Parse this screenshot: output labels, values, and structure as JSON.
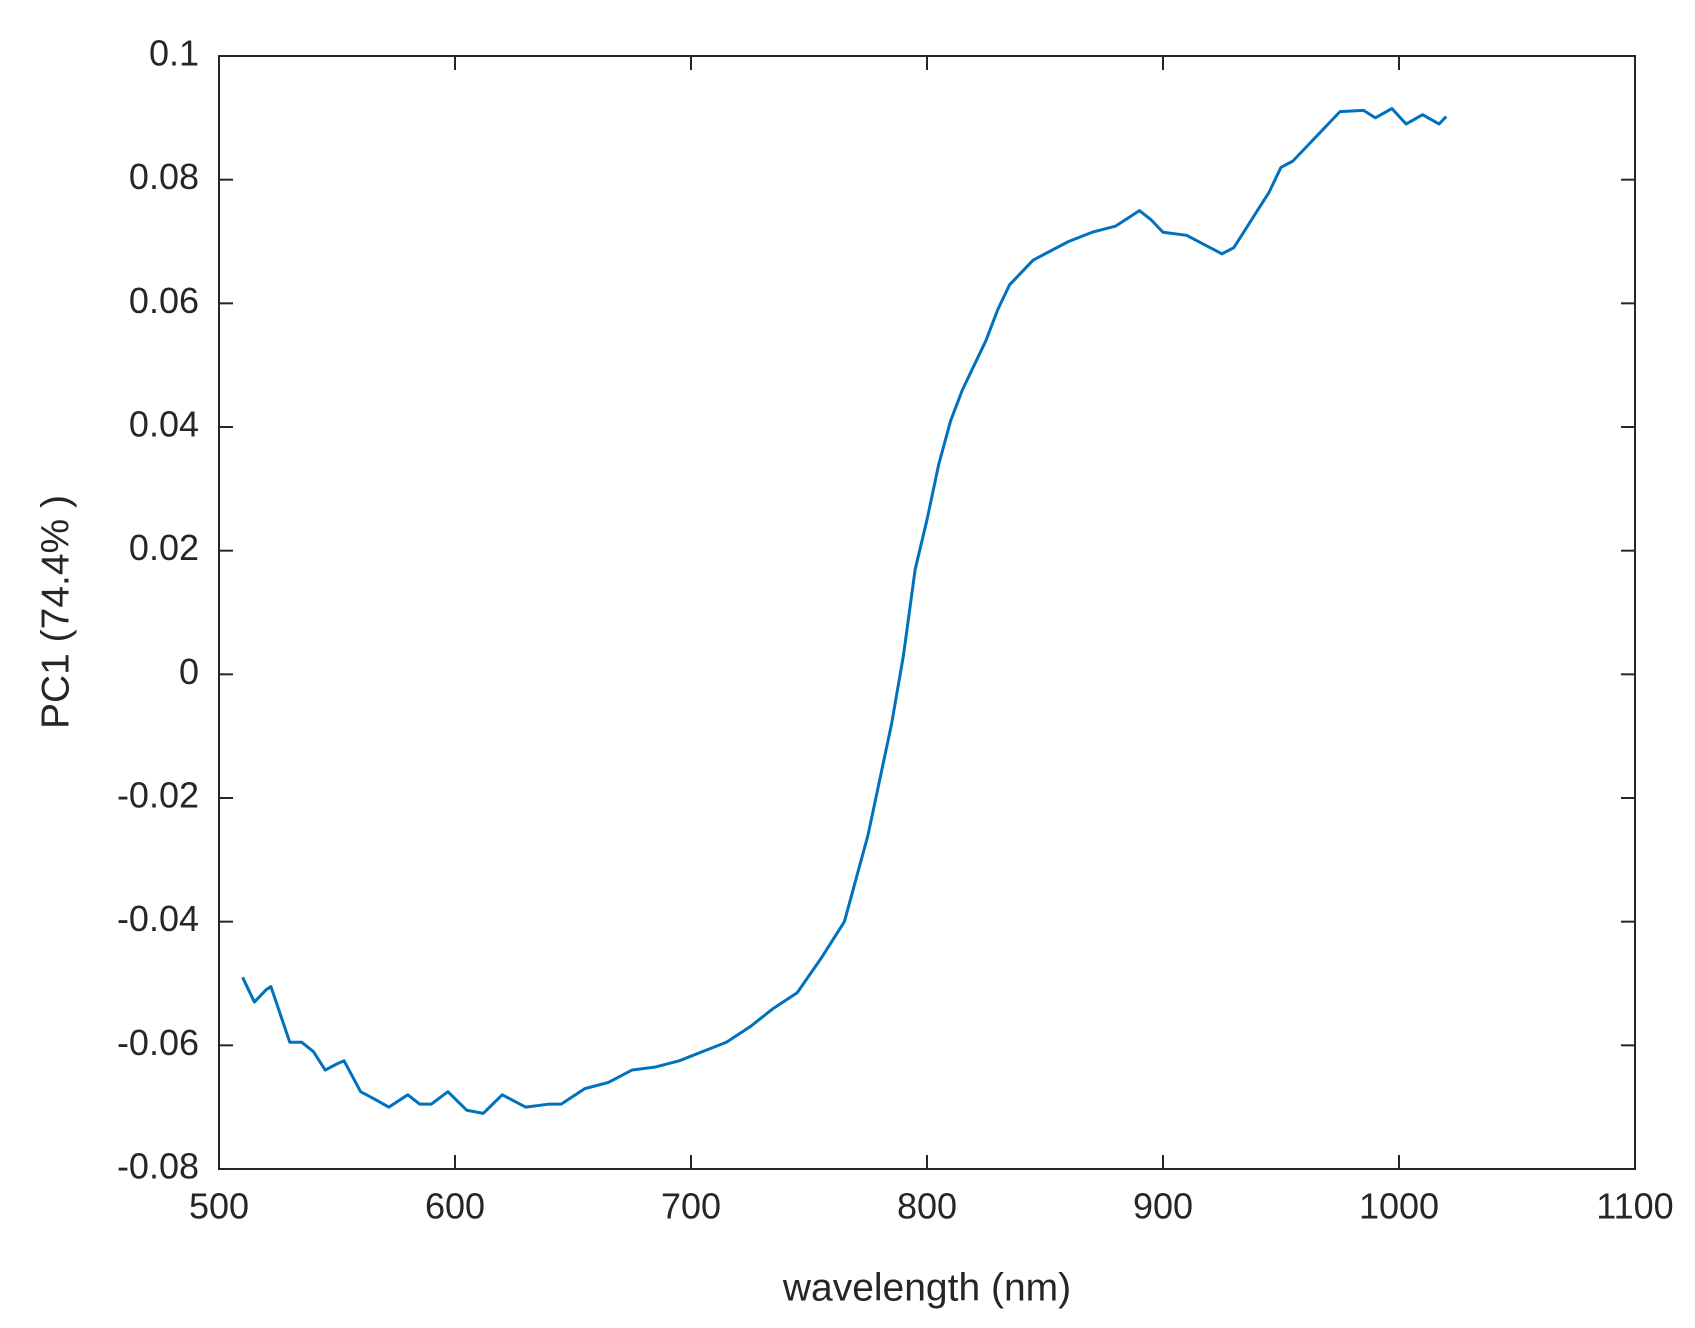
{
  "chart_data": {
    "type": "line",
    "xlabel": "wavelength (nm)",
    "ylabel": "PC1 (74.4% )",
    "x": [
      510,
      515,
      520,
      522,
      530,
      535,
      540,
      545,
      550,
      553,
      560,
      565,
      572,
      580,
      585,
      590,
      597,
      605,
      612,
      620,
      630,
      640,
      645,
      655,
      665,
      675,
      685,
      695,
      705,
      715,
      725,
      735,
      745,
      755,
      765,
      770,
      775,
      780,
      785,
      790,
      795,
      800,
      805,
      810,
      815,
      820,
      825,
      830,
      835,
      840,
      845,
      850,
      860,
      870,
      880,
      890,
      895,
      900,
      910,
      920,
      925,
      930,
      935,
      940,
      945,
      950,
      955,
      960,
      965,
      970,
      975,
      985,
      990,
      997,
      1003,
      1010,
      1017,
      1020
    ],
    "series": [
      {
        "name": "PC1",
        "color": "#0072bd",
        "values": [
          -0.049,
          -0.053,
          -0.051,
          -0.0505,
          -0.0595,
          -0.0595,
          -0.061,
          -0.064,
          -0.063,
          -0.0625,
          -0.0675,
          -0.0685,
          -0.07,
          -0.068,
          -0.0695,
          -0.0695,
          -0.0675,
          -0.0705,
          -0.071,
          -0.068,
          -0.07,
          -0.0695,
          -0.0695,
          -0.067,
          -0.066,
          -0.064,
          -0.0635,
          -0.0625,
          -0.061,
          -0.0595,
          -0.057,
          -0.054,
          -0.0515,
          -0.046,
          -0.04,
          -0.033,
          -0.026,
          -0.017,
          -0.008,
          0.003,
          0.017,
          0.025,
          0.034,
          0.041,
          0.046,
          0.05,
          0.054,
          0.059,
          0.063,
          0.065,
          0.067,
          0.068,
          0.07,
          0.0715,
          0.0725,
          0.075,
          0.0735,
          0.0715,
          0.071,
          0.069,
          0.068,
          0.069,
          0.072,
          0.075,
          0.078,
          0.082,
          0.083,
          0.085,
          0.087,
          0.089,
          0.091,
          0.0912,
          0.09,
          0.0915,
          0.089,
          0.0905,
          0.089,
          0.0902
        ]
      }
    ],
    "xlim": [
      500,
      1100
    ],
    "xticks": [
      500,
      600,
      700,
      800,
      900,
      1000,
      1100
    ],
    "ylim": [
      -0.08,
      0.1
    ],
    "yticks": [
      -0.08,
      -0.06,
      -0.04,
      -0.02,
      0,
      0.02,
      0.04,
      0.06,
      0.08,
      0.1
    ],
    "grid": false
  }
}
